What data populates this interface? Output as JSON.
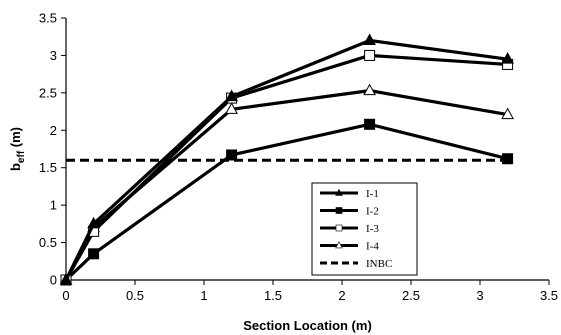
{
  "chart_data": {
    "type": "line",
    "xlabel": "Section Location (m)",
    "ylabel_main": "b",
    "ylabel_sub": "eff",
    "ylabel_unit": " (m)",
    "xlim": [
      0,
      3.5
    ],
    "ylim": [
      0,
      3.5
    ],
    "xticks": [
      0,
      0.5,
      1,
      1.5,
      2,
      2.5,
      3,
      3.5
    ],
    "yticks": [
      0,
      0.5,
      1,
      1.5,
      2,
      2.5,
      3,
      3.5
    ],
    "xtick_labels": [
      "0",
      "0.5",
      "1",
      "1.5",
      "2",
      "2.5",
      "3",
      "3.5"
    ],
    "ytick_labels": [
      "0",
      "0.5",
      "1",
      "1.5",
      "2",
      "2.5",
      "3",
      "3.5"
    ],
    "grid": false,
    "legend_position": "lower-right",
    "series": [
      {
        "name": "I-1",
        "marker": "filled-triangle",
        "x": [
          0,
          0.2,
          1.2,
          2.2,
          3.2
        ],
        "y": [
          0,
          0.75,
          2.45,
          3.2,
          2.95
        ]
      },
      {
        "name": "I-2",
        "marker": "filled-square",
        "x": [
          0,
          0.2,
          1.2,
          2.2,
          3.2
        ],
        "y": [
          0,
          0.35,
          1.67,
          2.08,
          1.62
        ]
      },
      {
        "name": "I-3",
        "marker": "open-square",
        "x": [
          0,
          0.2,
          1.2,
          2.2,
          3.2
        ],
        "y": [
          0,
          0.65,
          2.43,
          3.0,
          2.88
        ]
      },
      {
        "name": "I-4",
        "marker": "open-triangle",
        "x": [
          0,
          0.2,
          1.2,
          2.2,
          3.2
        ],
        "y": [
          0,
          0.7,
          2.28,
          2.53,
          2.21
        ]
      },
      {
        "name": "INBC",
        "marker": "none",
        "dashed": true,
        "x": [
          0,
          3.2
        ],
        "y": [
          1.6,
          1.6
        ]
      }
    ]
  }
}
